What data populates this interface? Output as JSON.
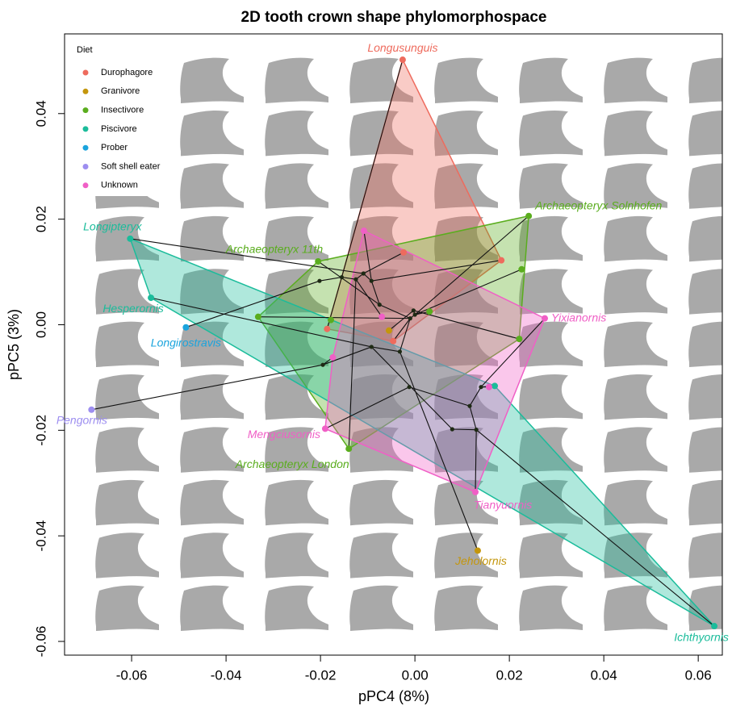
{
  "chart_data": {
    "type": "scatter",
    "title": "2D tooth crown shape phylomorphospace",
    "x_label": "pPC4 (8%)",
    "y_label": "pPC5 (3%)",
    "xlim": [
      -0.0742,
      0.0651
    ],
    "ylim": [
      -0.0626,
      0.0551
    ],
    "xticks": [
      {
        "value": -0.06,
        "label": "-0.06"
      },
      {
        "value": -0.04,
        "label": "-0.04"
      },
      {
        "value": -0.02,
        "label": "-0.02"
      },
      {
        "value": 0,
        "label": "0.00"
      },
      {
        "value": 0.02,
        "label": "0.02"
      },
      {
        "value": 0.04,
        "label": "0.04"
      },
      {
        "value": 0.06,
        "label": "0.06"
      }
    ],
    "yticks": [
      {
        "value": -0.06,
        "label": "-0.06"
      },
      {
        "value": -0.04,
        "label": "-0.04"
      },
      {
        "value": -0.02,
        "label": "-0.02"
      },
      {
        "value": 0,
        "label": "0.00"
      },
      {
        "value": 0.02,
        "label": "0.02"
      },
      {
        "value": 0.04,
        "label": "0.04"
      }
    ],
    "legend_title": "Diet",
    "legend_position": "top-left",
    "convex_hulls": true,
    "series": [
      {
        "name": "Durophagore",
        "color": "#ee6b5d",
        "x": [
          -0.0026,
          0.0183,
          -0.0024,
          -0.0186,
          -0.0046
        ],
        "y": [
          0.0502,
          0.0122,
          0.0137,
          -0.0008,
          -0.0031
        ],
        "labels": [
          "Longusunguis",
          null,
          null,
          null,
          null
        ]
      },
      {
        "name": "Granivore",
        "color": "#c4960c",
        "x": [
          -0.0055,
          0.0133
        ],
        "y": [
          -0.0011,
          -0.0428
        ],
        "labels": [
          null,
          "Jeholornis"
        ]
      },
      {
        "name": "Insectivore",
        "color": "#5aad1e",
        "x": [
          0.0241,
          0.0226,
          0.0221,
          0.0031,
          -0.0205,
          -0.0332,
          -0.0178,
          -0.014
        ],
        "y": [
          0.0206,
          0.0105,
          -0.0027,
          0.0025,
          0.012,
          0.0015,
          0.0009,
          -0.0235
        ],
        "labels": [
          "Archaeopteryx Solnhofen",
          null,
          null,
          null,
          "Archaeopteryx 11th",
          null,
          null,
          "Archaeopteryx London"
        ]
      },
      {
        "name": "Piscivore",
        "color": "#1bbc9b",
        "x": [
          -0.0603,
          -0.0559,
          0.0169,
          0.0634
        ],
        "y": [
          0.0163,
          0.0051,
          -0.0116,
          -0.0571
        ],
        "labels": [
          "Longipteryx",
          "Hesperornis",
          null,
          "Ichthyornis"
        ]
      },
      {
        "name": "Prober",
        "color": "#1aa4dd",
        "x": [
          -0.0485
        ],
        "y": [
          -0.0005
        ],
        "labels": [
          "Longirostravis"
        ]
      },
      {
        "name": "Soft shell eater",
        "color": "#9d8ef0",
        "x": [
          -0.0685
        ],
        "y": [
          -0.0161
        ],
        "labels": [
          "Pengornis"
        ]
      },
      {
        "name": "Unknown",
        "color": "#f05fc6",
        "x": [
          -0.0108,
          -0.007,
          0.0275,
          -0.0174,
          0.0157,
          -0.019,
          0.0128
        ],
        "y": [
          0.0178,
          0.0015,
          0.0012,
          -0.0062,
          -0.0118,
          -0.0197,
          -0.0317
        ],
        "labels": [
          null,
          null,
          "Yixianornis",
          null,
          null,
          "Mengciusornis",
          "Tianyuornis"
        ]
      }
    ],
    "tree_nodes": {
      "x": [
        -0.0202,
        -0.0155,
        -0.0125,
        -0.0109,
        -0.0092,
        -0.0075,
        -0.0003,
        -0.001,
        0.0,
        -0.0092,
        -0.0032,
        -0.0195,
        -0.0012,
        0.0116,
        0.014,
        0.013,
        0.0079
      ],
      "y": [
        0.0083,
        0.009,
        0.0086,
        0.0097,
        0.0083,
        0.0038,
        0.0027,
        0.0012,
        0.0019,
        -0.0042,
        -0.0051,
        -0.0076,
        -0.0118,
        -0.0154,
        -0.0118,
        -0.0199,
        -0.0198
      ]
    },
    "tree_edges": {
      "x1": [
        -0.0603,
        -0.0026,
        0.0241,
        0.0183,
        0.0226,
        -0.0205,
        -0.0559,
        -0.0485,
        -0.0332,
        -0.0685,
        -0.0174,
        -0.0195,
        -0.019,
        -0.014,
        -0.0092,
        -0.0032,
        0.0133,
        -0.0046,
        -0.0055,
        -0.007,
        -0.0186,
        -0.0108,
        0.0031,
        0.0221,
        -0.0012,
        0.0116,
        0.014,
        0.014,
        0.014,
        0.0116,
        0.013,
        0.013,
        0.0079,
        0.0079,
        -0.0024,
        -0.0155,
        -0.0155,
        -0.0125,
        -0.0109,
        -0.0092,
        -0.0075,
        -0.0003,
        0.0
      ],
      "y1": [
        0.0163,
        0.0502,
        0.0206,
        0.0122,
        0.0105,
        0.012,
        0.0051,
        -0.0005,
        0.0015,
        -0.0161,
        -0.0062,
        -0.0076,
        -0.0197,
        -0.0235,
        -0.0042,
        -0.0051,
        -0.0428,
        -0.0031,
        -0.0011,
        0.0015,
        -0.0008,
        0.0178,
        0.0025,
        -0.0027,
        -0.0118,
        -0.0154,
        -0.0118,
        -0.0118,
        -0.0118,
        -0.0154,
        -0.0199,
        -0.0199,
        -0.0198,
        -0.0198,
        0.0137,
        0.009,
        0.009,
        0.0086,
        0.0097,
        0.0083,
        0.0038,
        0.0027,
        0.0019
      ],
      "x2": [
        -0.0109,
        -0.0155,
        0.0,
        -0.0092,
        0.0,
        -0.0075,
        -0.0092,
        -0.0202,
        -0.001,
        -0.0195,
        -0.0195,
        -0.0092,
        -0.0012,
        -0.0125,
        -0.0032,
        -0.001,
        -0.0032,
        -0.001,
        -0.0003,
        -0.0125,
        -0.0155,
        -0.0092,
        0.0,
        -0.0003,
        0.0116,
        0.014,
        0.0275,
        0.0169,
        0.0157,
        0.013,
        0.0634,
        0.0128,
        0.013,
        -0.0092,
        -0.0109,
        -0.0202,
        -0.0125,
        -0.0109,
        -0.0092,
        -0.0075,
        -0.001,
        0.0,
        -0.001
      ],
      "y2": [
        0.0097,
        0.009,
        0.0019,
        0.0083,
        0.0019,
        0.0038,
        -0.0042,
        0.0083,
        0.0012,
        -0.0076,
        -0.0076,
        -0.0042,
        -0.0118,
        0.0086,
        -0.0051,
        0.0012,
        -0.0051,
        0.0012,
        0.0027,
        0.0086,
        0.009,
        0.0083,
        0.0019,
        0.0027,
        -0.0154,
        -0.0118,
        0.0012,
        -0.0116,
        -0.0118,
        -0.0199,
        -0.0571,
        -0.0317,
        -0.0199,
        -0.0042,
        0.0097,
        0.0083,
        0.0086,
        0.0097,
        0.0083,
        0.0038,
        0.0012,
        0.0019,
        0.0012
      ]
    }
  }
}
